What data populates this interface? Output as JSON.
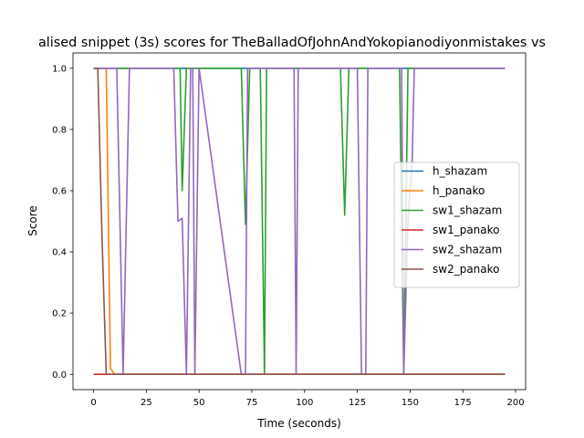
{
  "chart_data": {
    "type": "line",
    "title": "alised snippet (3s) scores for TheBalladOfJohnAndYokopianodiyonmistakes vs",
    "xlabel": "Time (seconds)",
    "ylabel": "Score",
    "xlim": [
      -9.75,
      204.75
    ],
    "ylim": [
      -0.05,
      1.05
    ],
    "xticks": [
      0,
      25,
      50,
      75,
      100,
      125,
      150,
      175,
      200
    ],
    "yticks": [
      0.0,
      0.2,
      0.4,
      0.6,
      0.8,
      1.0
    ],
    "grid": false,
    "legend_position": "center-right",
    "series": [
      {
        "name": "h_shazam",
        "color": "#1f77b4",
        "x": [
          0,
          195
        ],
        "y": [
          1.0,
          1.0
        ]
      },
      {
        "name": "h_panako",
        "color": "#ff7f0e",
        "x": [
          0,
          6,
          8,
          10,
          195
        ],
        "y": [
          1.0,
          1.0,
          0.02,
          0.0,
          0.0
        ]
      },
      {
        "name": "sw1_shazam",
        "color": "#2ca02c",
        "x": [
          0,
          41,
          42,
          44,
          45,
          69,
          70,
          72,
          74,
          75,
          78,
          79,
          81,
          82,
          116,
          117,
          119,
          121,
          122,
          144,
          145,
          147,
          149,
          150,
          195
        ],
        "y": [
          1.0,
          1.0,
          0.6,
          1.0,
          1.0,
          1.0,
          1.0,
          0.49,
          1.0,
          1.0,
          1.0,
          1.0,
          0.0,
          1.0,
          1.0,
          1.0,
          0.52,
          1.0,
          1.0,
          1.0,
          1.0,
          0.0,
          1.0,
          1.0,
          1.0
        ]
      },
      {
        "name": "sw1_panako",
        "color": "#d62728",
        "x": [
          0,
          195
        ],
        "y": [
          0.0,
          0.0
        ]
      },
      {
        "name": "sw2_shazam",
        "color": "#9467bd",
        "x": [
          0,
          11,
          14,
          17,
          18,
          38,
          40,
          42,
          44,
          46,
          47,
          48,
          50,
          70,
          72,
          73,
          95,
          96,
          97,
          124,
          125,
          126,
          127,
          129,
          130,
          132,
          146,
          147,
          149,
          151,
          152,
          195
        ],
        "y": [
          1.0,
          1.0,
          0.0,
          1.0,
          1.0,
          1.0,
          0.5,
          0.51,
          0.0,
          1.0,
          1.0,
          0.0,
          1.0,
          0.0,
          0.0,
          1.0,
          1.0,
          0.0,
          1.0,
          1.0,
          1.0,
          0.5,
          0.0,
          0.0,
          1.0,
          1.0,
          1.0,
          0.0,
          0.5,
          0.7,
          1.0,
          1.0
        ]
      },
      {
        "name": "sw2_panako",
        "color": "#8c564b",
        "x": [
          0,
          2,
          4,
          6,
          195
        ],
        "y": [
          1.0,
          1.0,
          0.45,
          0.0,
          0.0
        ]
      }
    ]
  }
}
